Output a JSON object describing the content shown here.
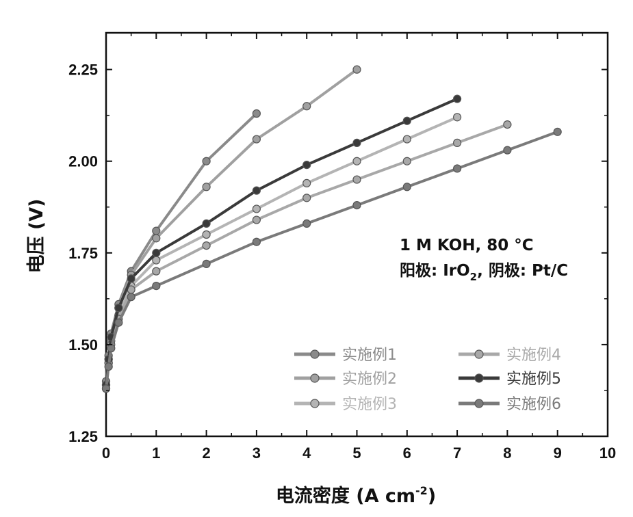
{
  "chart_data": {
    "type": "line",
    "xlabel": "电流密度 (A cm",
    "xlabel_sup": "-2",
    "xlabel_end": ")",
    "ylabel": "电压 (V)",
    "xlim": [
      0,
      10
    ],
    "ylim": [
      1.25,
      2.35
    ],
    "xticks": [
      0,
      1,
      2,
      3,
      4,
      5,
      6,
      7,
      8,
      9,
      10
    ],
    "xtick_labels": [
      "0",
      "1",
      "2",
      "3",
      "4",
      "5",
      "6",
      "7",
      "8",
      "9",
      "10"
    ],
    "yticks": [
      1.25,
      1.5,
      1.75,
      2.0,
      2.25
    ],
    "ytick_labels": [
      "1.25",
      "1.50",
      "1.75",
      "2.00",
      "2.25"
    ],
    "grid": false,
    "legend_position": "lower-right",
    "annotations": {
      "line1": "1 M KOH, 80 °C",
      "line2_a": "阳极: IrO",
      "line2_sub": "2",
      "line2_b": ", 阴极: Pt/C"
    },
    "series": [
      {
        "name": "实施例1",
        "color": "#8a8a8a",
        "x": [
          0,
          0.05,
          0.1,
          0.25,
          0.5,
          1,
          2,
          3
        ],
        "y": [
          1.4,
          1.47,
          1.53,
          1.61,
          1.7,
          1.81,
          2.0,
          2.13
        ]
      },
      {
        "name": "实施例2",
        "color": "#a0a0a0",
        "x": [
          0,
          0.05,
          0.1,
          0.25,
          0.5,
          1,
          2,
          3,
          4,
          5
        ],
        "y": [
          1.39,
          1.46,
          1.52,
          1.6,
          1.69,
          1.79,
          1.93,
          2.06,
          2.15,
          2.25
        ]
      },
      {
        "name": "实施例3",
        "color": "#b4b4b4",
        "x": [
          0,
          0.05,
          0.1,
          0.25,
          0.5,
          1,
          2,
          3,
          4,
          5,
          6,
          7
        ],
        "y": [
          1.39,
          1.45,
          1.51,
          1.58,
          1.66,
          1.73,
          1.8,
          1.87,
          1.94,
          2.0,
          2.06,
          2.12
        ]
      },
      {
        "name": "实施例4",
        "color": "#a8a8a8",
        "x": [
          0,
          0.05,
          0.1,
          0.25,
          0.5,
          1,
          2,
          3,
          4,
          5,
          6,
          7,
          8
        ],
        "y": [
          1.38,
          1.45,
          1.5,
          1.57,
          1.65,
          1.7,
          1.77,
          1.84,
          1.9,
          1.95,
          2.0,
          2.05,
          2.1
        ]
      },
      {
        "name": "实施例5",
        "color": "#3a3a3a",
        "x": [
          0,
          0.05,
          0.1,
          0.25,
          0.5,
          1,
          2,
          3,
          4,
          5,
          6,
          7
        ],
        "y": [
          1.39,
          1.46,
          1.52,
          1.6,
          1.68,
          1.75,
          1.83,
          1.92,
          1.99,
          2.05,
          2.11,
          2.17
        ]
      },
      {
        "name": "实施例6",
        "color": "#7a7a7a",
        "x": [
          0,
          0.05,
          0.1,
          0.25,
          0.5,
          1,
          2,
          3,
          4,
          5,
          6,
          7,
          8,
          9
        ],
        "y": [
          1.38,
          1.44,
          1.49,
          1.56,
          1.63,
          1.66,
          1.72,
          1.78,
          1.83,
          1.88,
          1.93,
          1.98,
          2.03,
          2.08
        ]
      }
    ]
  }
}
